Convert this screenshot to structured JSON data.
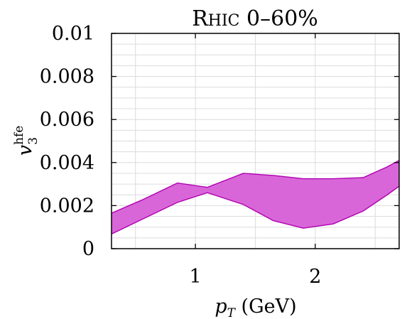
{
  "chart_data": {
    "type": "area",
    "title": "Rhic 0–60%",
    "ylabel": "v₃^hfe",
    "xlabel": "pT (GeV)",
    "xlim": [
      0.3,
      2.7
    ],
    "ylim": [
      0,
      0.01
    ],
    "x_ticks": [
      1,
      2
    ],
    "x_tick_labels": [
      "1",
      "2"
    ],
    "y_ticks": [
      0,
      0.002,
      0.004,
      0.006,
      0.008,
      0.01
    ],
    "y_tick_labels": [
      "0",
      "0.002",
      "0.004",
      "0.006",
      "0.008",
      "0.01"
    ],
    "grid": true,
    "band": {
      "color": "#d966d9",
      "edge_color": "#b000b0",
      "x": [
        0.3,
        0.55,
        0.85,
        1.1,
        1.4,
        1.65,
        1.9,
        2.15,
        2.4,
        2.6,
        2.7
      ],
      "upper": [
        0.00165,
        0.00225,
        0.00305,
        0.00285,
        0.0035,
        0.0034,
        0.00325,
        0.00325,
        0.0033,
        0.0038,
        0.0041
      ],
      "lower": [
        0.00068,
        0.00135,
        0.00215,
        0.0026,
        0.00205,
        0.0013,
        0.00095,
        0.00115,
        0.00175,
        0.0025,
        0.0029
      ]
    }
  }
}
